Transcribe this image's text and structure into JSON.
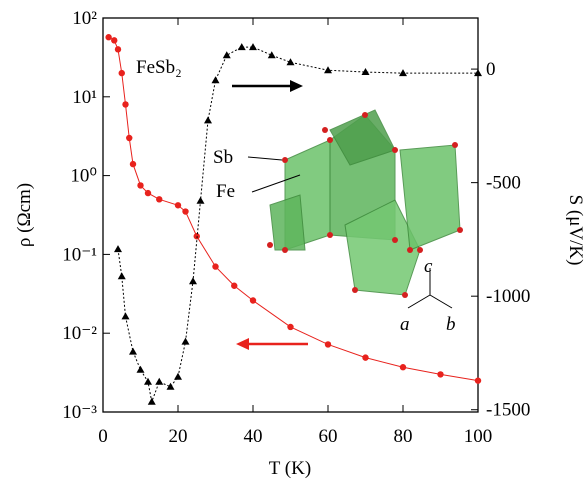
{
  "chart_data": {
    "type": "line",
    "log_y": true,
    "xlabel": "T (K)",
    "ylabel": "ρ (Ωcm)",
    "y2label": "S (μV/K)",
    "xlim": [
      0,
      100
    ],
    "xticks": [
      0,
      20,
      40,
      60,
      80,
      100
    ],
    "ylim": [
      0.001,
      100
    ],
    "yticks": [
      {
        "value": 100,
        "label": "10²"
      },
      {
        "value": 10,
        "label": "10¹"
      },
      {
        "value": 1,
        "label": "10⁰"
      },
      {
        "value": 0.1,
        "label": "10⁻¹"
      },
      {
        "value": 0.01,
        "label": "10⁻²"
      },
      {
        "value": 0.001,
        "label": "10⁻³"
      }
    ],
    "y2lim": [
      -1510,
      225
    ],
    "y2ticks": [
      0,
      -500,
      -1000,
      -1500
    ],
    "annotations": [
      "FeSb₂",
      "Sb",
      "Fe",
      "a",
      "b",
      "c"
    ],
    "series": [
      {
        "color": "#e8221d",
        "marker": "circle",
        "x": [
          1.5,
          3,
          4,
          5,
          6,
          7,
          8,
          10,
          12,
          15,
          20,
          22,
          25,
          30,
          35,
          40,
          50,
          60,
          70,
          80,
          90,
          100
        ],
        "values": [
          57,
          52,
          40,
          20,
          8,
          3,
          1.4,
          0.75,
          0.6,
          0.5,
          0.42,
          0.35,
          0.17,
          0.07,
          0.04,
          0.026,
          0.012,
          0.0072,
          0.0049,
          0.0037,
          0.003,
          0.0025
        ]
      },
      {
        "color": "#000000",
        "marker": "triangle",
        "axis": "y2",
        "x": [
          4,
          5,
          6,
          8,
          10,
          12,
          13,
          15,
          18,
          20,
          22,
          24,
          26,
          28,
          30,
          33,
          37,
          40,
          45,
          50,
          60,
          70,
          80,
          100
        ],
        "values": [
          -793,
          -912,
          -1089,
          -1244,
          -1324,
          -1377,
          -1465,
          -1377,
          -1399,
          -1355,
          -1200,
          -934,
          -580,
          -226,
          -49,
          61,
          97,
          97,
          61,
          30,
          -5,
          -13,
          -18,
          -18
        ]
      }
    ]
  }
}
